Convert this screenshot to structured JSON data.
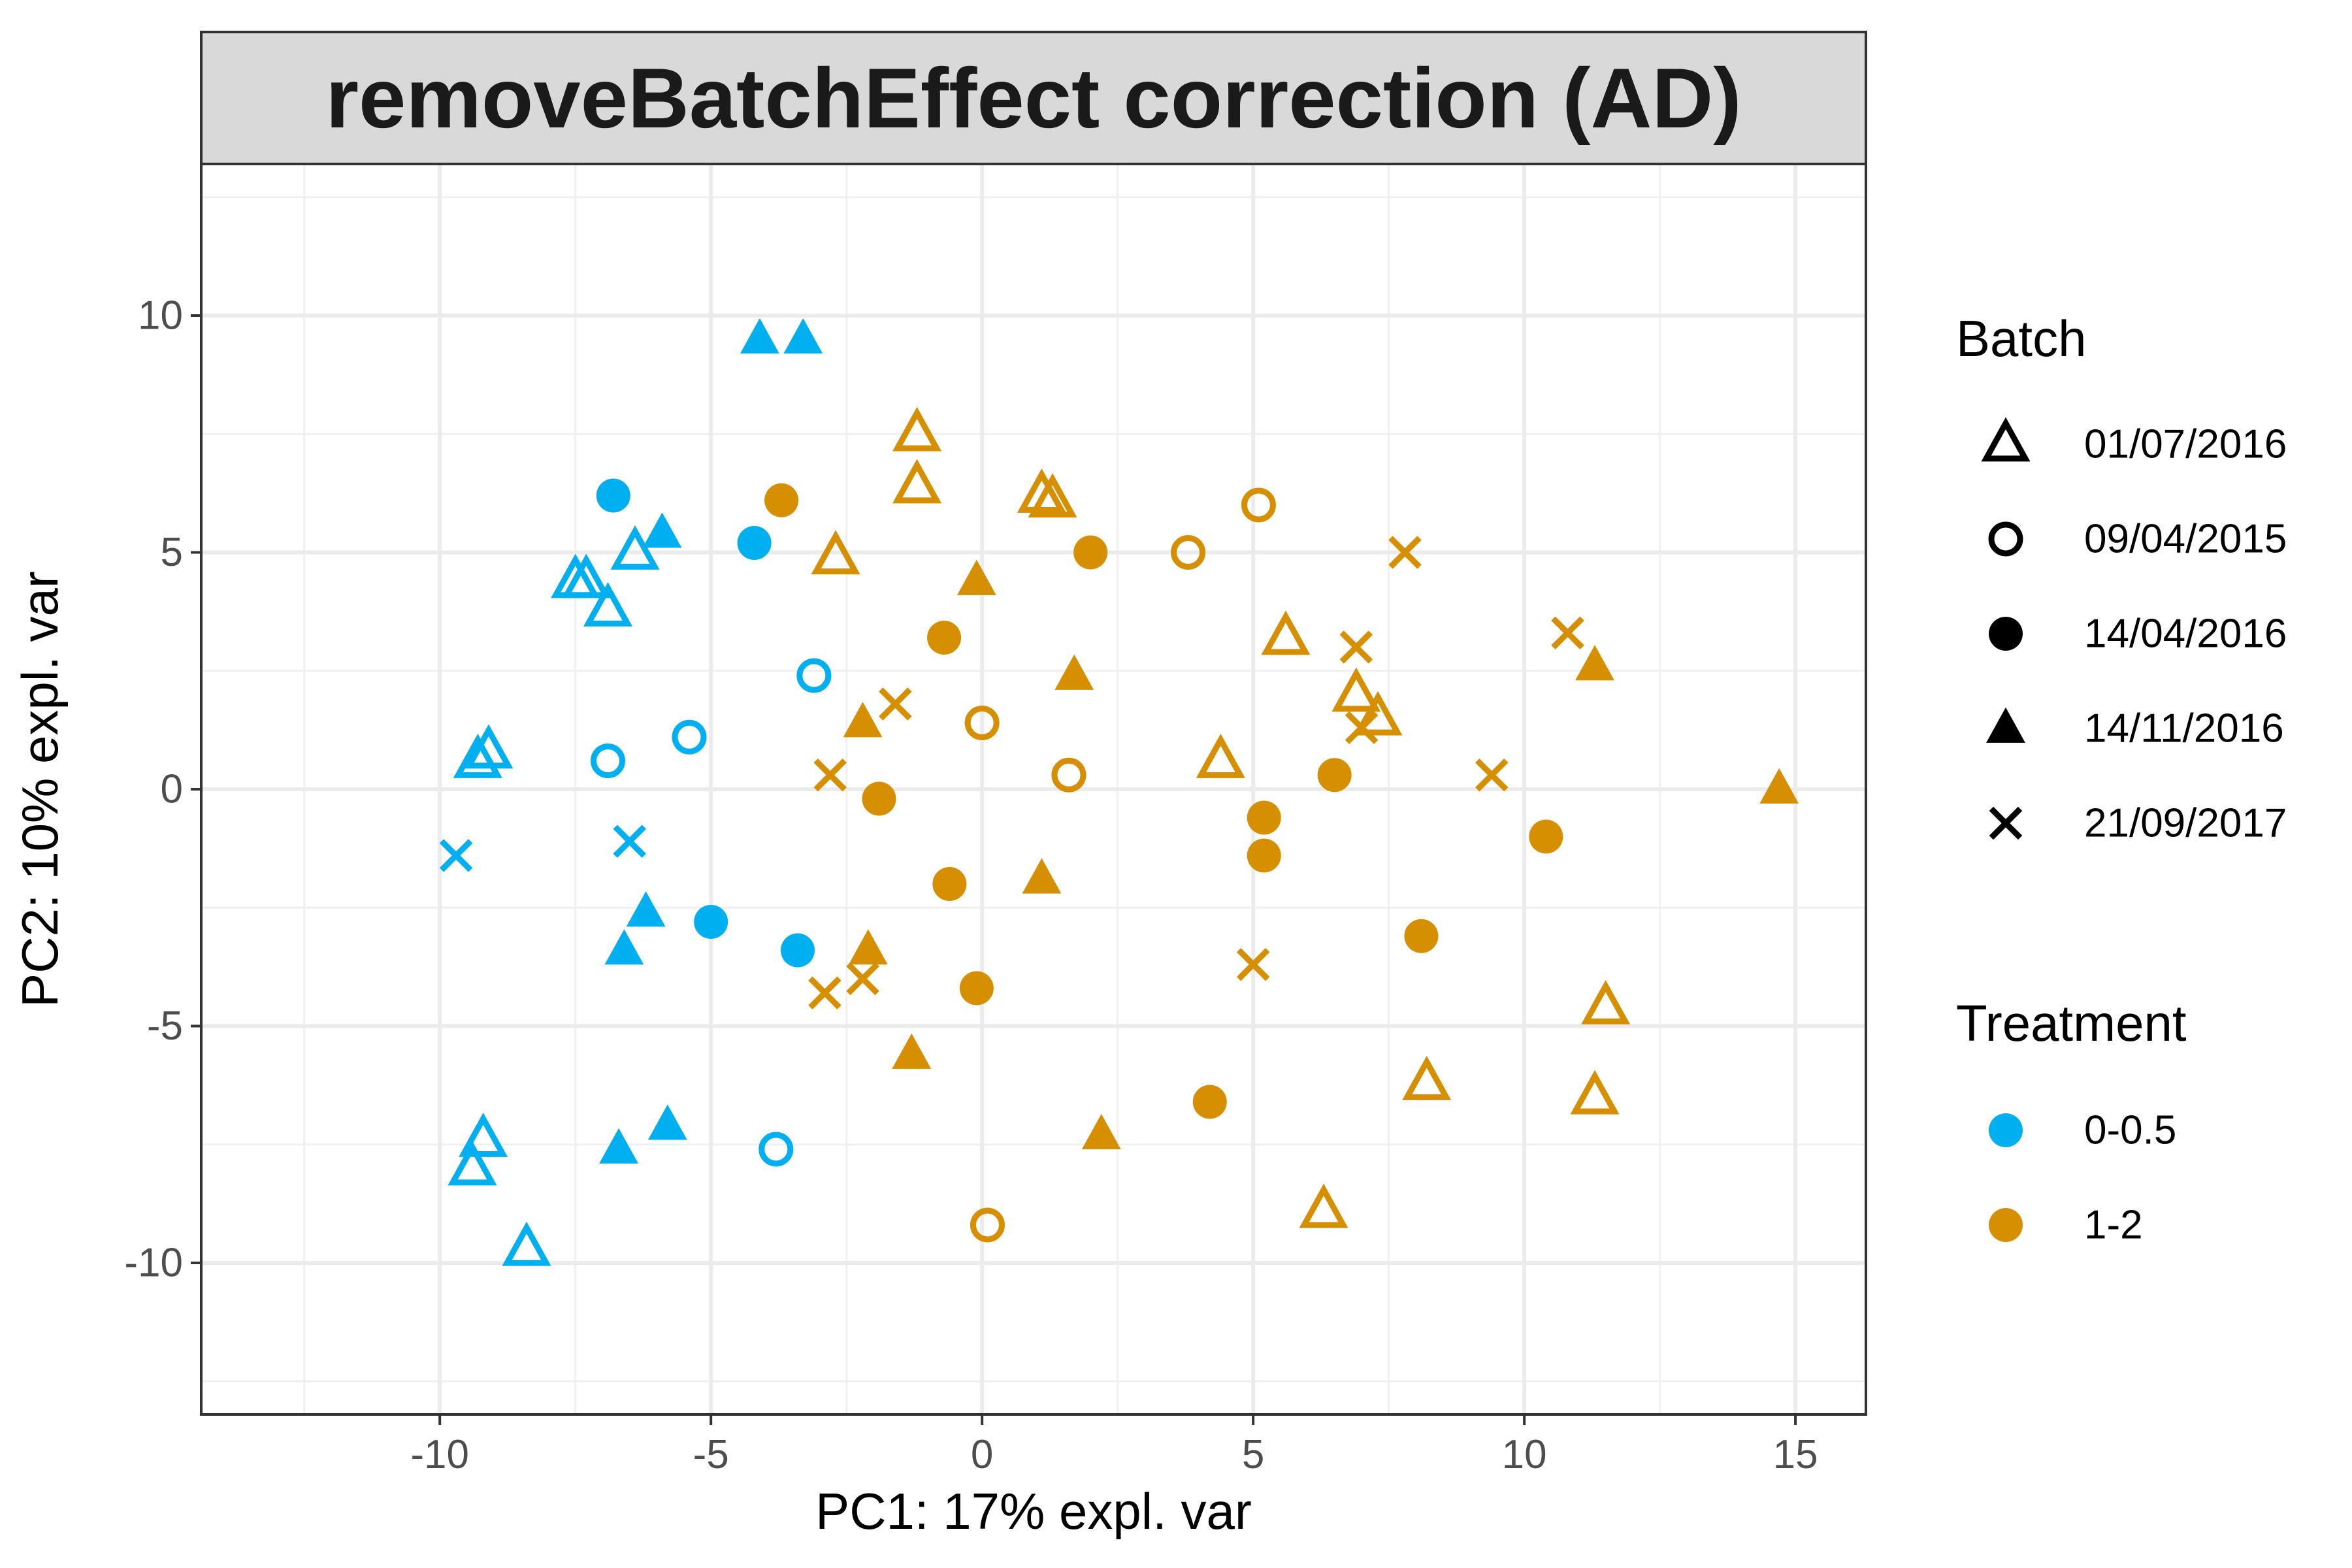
{
  "chart_data": {
    "type": "scatter",
    "title": "removeBatchEffect correction (AD)",
    "xlabel": "PC1: 17% expl. var",
    "ylabel": "PC2: 10% expl. var",
    "xlim": [
      -14.4,
      16.3
    ],
    "ylim": [
      -13.2,
      13.2
    ],
    "x_ticks": [
      -10,
      -5,
      0,
      5,
      10,
      15
    ],
    "y_ticks": [
      -10,
      -5,
      0,
      5,
      10
    ],
    "x_tick_labels": [
      "-10",
      "-5",
      "0",
      "5",
      "10",
      "15"
    ],
    "y_tick_labels": [
      "-10",
      "-5",
      "0",
      "5",
      "10"
    ],
    "grid": true,
    "legend_position": "right",
    "legends": {
      "batch": {
        "title": "Batch",
        "items": [
          {
            "label": "01/07/2016",
            "shape": "triangle-open"
          },
          {
            "label": "09/04/2015",
            "shape": "circle-open"
          },
          {
            "label": "14/04/2016",
            "shape": "circle-filled"
          },
          {
            "label": "14/11/2016",
            "shape": "triangle-filled"
          },
          {
            "label": "21/09/2017",
            "shape": "cross"
          }
        ]
      },
      "treatment": {
        "title": "Treatment",
        "items": [
          {
            "label": "0-0.5",
            "color": "#00AFF0"
          },
          {
            "label": "1-2",
            "color": "#D58F00"
          }
        ]
      }
    },
    "points": [
      {
        "x": -4.1,
        "y": 9.5,
        "batch": "14/11/2016",
        "treatment": "0-0.5"
      },
      {
        "x": -3.3,
        "y": 9.5,
        "batch": "14/11/2016",
        "treatment": "0-0.5"
      },
      {
        "x": -6.8,
        "y": 6.2,
        "batch": "14/04/2016",
        "treatment": "0-0.5"
      },
      {
        "x": -4.2,
        "y": 5.2,
        "batch": "14/04/2016",
        "treatment": "0-0.5"
      },
      {
        "x": -5.9,
        "y": 5.4,
        "batch": "14/11/2016",
        "treatment": "0-0.5"
      },
      {
        "x": -6.4,
        "y": 5.0,
        "batch": "01/07/2016",
        "treatment": "0-0.5"
      },
      {
        "x": -7.5,
        "y": 4.4,
        "batch": "01/07/2016",
        "treatment": "0-0.5"
      },
      {
        "x": -7.3,
        "y": 4.4,
        "batch": "01/07/2016",
        "treatment": "0-0.5"
      },
      {
        "x": -6.9,
        "y": 3.8,
        "batch": "01/07/2016",
        "treatment": "0-0.5"
      },
      {
        "x": -3.1,
        "y": 2.4,
        "batch": "09/04/2015",
        "treatment": "0-0.5"
      },
      {
        "x": -5.4,
        "y": 1.1,
        "batch": "09/04/2015",
        "treatment": "0-0.5"
      },
      {
        "x": -9.1,
        "y": 0.8,
        "batch": "01/07/2016",
        "treatment": "0-0.5"
      },
      {
        "x": -9.3,
        "y": 0.6,
        "batch": "01/07/2016",
        "treatment": "0-0.5"
      },
      {
        "x": -6.9,
        "y": 0.6,
        "batch": "09/04/2015",
        "treatment": "0-0.5"
      },
      {
        "x": -9.7,
        "y": -1.4,
        "batch": "21/09/2017",
        "treatment": "0-0.5"
      },
      {
        "x": -6.5,
        "y": -1.1,
        "batch": "21/09/2017",
        "treatment": "0-0.5"
      },
      {
        "x": -6.2,
        "y": -2.6,
        "batch": "14/11/2016",
        "treatment": "0-0.5"
      },
      {
        "x": -5.0,
        "y": -2.8,
        "batch": "14/04/2016",
        "treatment": "0-0.5"
      },
      {
        "x": -6.6,
        "y": -3.4,
        "batch": "14/11/2016",
        "treatment": "0-0.5"
      },
      {
        "x": -3.4,
        "y": -3.4,
        "batch": "14/04/2016",
        "treatment": "0-0.5"
      },
      {
        "x": -9.2,
        "y": -7.4,
        "batch": "01/07/2016",
        "treatment": "0-0.5"
      },
      {
        "x": -9.4,
        "y": -8.0,
        "batch": "01/07/2016",
        "treatment": "0-0.5"
      },
      {
        "x": -6.7,
        "y": -7.6,
        "batch": "14/11/2016",
        "treatment": "0-0.5"
      },
      {
        "x": -5.8,
        "y": -7.1,
        "batch": "14/11/2016",
        "treatment": "0-0.5"
      },
      {
        "x": -3.8,
        "y": -7.6,
        "batch": "09/04/2015",
        "treatment": "0-0.5"
      },
      {
        "x": -8.4,
        "y": -9.7,
        "batch": "01/07/2016",
        "treatment": "0-0.5"
      },
      {
        "x": -1.2,
        "y": 7.5,
        "batch": "01/07/2016",
        "treatment": "1-2"
      },
      {
        "x": -1.2,
        "y": 6.4,
        "batch": "01/07/2016",
        "treatment": "1-2"
      },
      {
        "x": -3.7,
        "y": 6.1,
        "batch": "14/04/2016",
        "treatment": "1-2"
      },
      {
        "x": 1.1,
        "y": 6.2,
        "batch": "01/07/2016",
        "treatment": "1-2"
      },
      {
        "x": 1.3,
        "y": 6.1,
        "batch": "01/07/2016",
        "treatment": "1-2"
      },
      {
        "x": 5.1,
        "y": 6.0,
        "batch": "09/04/2015",
        "treatment": "1-2"
      },
      {
        "x": -2.7,
        "y": 4.9,
        "batch": "01/07/2016",
        "treatment": "1-2"
      },
      {
        "x": 2.0,
        "y": 5.0,
        "batch": "14/04/2016",
        "treatment": "1-2"
      },
      {
        "x": 3.8,
        "y": 5.0,
        "batch": "09/04/2015",
        "treatment": "1-2"
      },
      {
        "x": 7.8,
        "y": 5.0,
        "batch": "21/09/2017",
        "treatment": "1-2"
      },
      {
        "x": -0.1,
        "y": 4.4,
        "batch": "14/11/2016",
        "treatment": "1-2"
      },
      {
        "x": -0.7,
        "y": 3.2,
        "batch": "14/04/2016",
        "treatment": "1-2"
      },
      {
        "x": 5.6,
        "y": 3.2,
        "batch": "01/07/2016",
        "treatment": "1-2"
      },
      {
        "x": 6.9,
        "y": 3.0,
        "batch": "21/09/2017",
        "treatment": "1-2"
      },
      {
        "x": 10.8,
        "y": 3.3,
        "batch": "21/09/2017",
        "treatment": "1-2"
      },
      {
        "x": 11.3,
        "y": 2.6,
        "batch": "14/11/2016",
        "treatment": "1-2"
      },
      {
        "x": 1.7,
        "y": 2.4,
        "batch": "14/11/2016",
        "treatment": "1-2"
      },
      {
        "x": 6.9,
        "y": 2.0,
        "batch": "01/07/2016",
        "treatment": "1-2"
      },
      {
        "x": -1.6,
        "y": 1.8,
        "batch": "21/09/2017",
        "treatment": "1-2"
      },
      {
        "x": -2.2,
        "y": 1.4,
        "batch": "14/11/2016",
        "treatment": "1-2"
      },
      {
        "x": 0.0,
        "y": 1.4,
        "batch": "09/04/2015",
        "treatment": "1-2"
      },
      {
        "x": 7.3,
        "y": 1.5,
        "batch": "01/07/2016",
        "treatment": "1-2"
      },
      {
        "x": 7.0,
        "y": 1.3,
        "batch": "21/09/2017",
        "treatment": "1-2"
      },
      {
        "x": 4.4,
        "y": 0.6,
        "batch": "01/07/2016",
        "treatment": "1-2"
      },
      {
        "x": -2.8,
        "y": 0.3,
        "batch": "21/09/2017",
        "treatment": "1-2"
      },
      {
        "x": 1.6,
        "y": 0.3,
        "batch": "09/04/2015",
        "treatment": "1-2"
      },
      {
        "x": 6.5,
        "y": 0.3,
        "batch": "14/04/2016",
        "treatment": "1-2"
      },
      {
        "x": 9.4,
        "y": 0.3,
        "batch": "21/09/2017",
        "treatment": "1-2"
      },
      {
        "x": 14.7,
        "y": 0.0,
        "batch": "14/11/2016",
        "treatment": "1-2"
      },
      {
        "x": -1.9,
        "y": -0.2,
        "batch": "14/04/2016",
        "treatment": "1-2"
      },
      {
        "x": 5.2,
        "y": -0.6,
        "batch": "14/04/2016",
        "treatment": "1-2"
      },
      {
        "x": 10.4,
        "y": -1.0,
        "batch": "14/04/2016",
        "treatment": "1-2"
      },
      {
        "x": 5.2,
        "y": -1.4,
        "batch": "14/04/2016",
        "treatment": "1-2"
      },
      {
        "x": -0.6,
        "y": -2.0,
        "batch": "14/04/2016",
        "treatment": "1-2"
      },
      {
        "x": 1.1,
        "y": -1.9,
        "batch": "14/11/2016",
        "treatment": "1-2"
      },
      {
        "x": 8.1,
        "y": -3.1,
        "batch": "14/04/2016",
        "treatment": "1-2"
      },
      {
        "x": 5.0,
        "y": -3.7,
        "batch": "21/09/2017",
        "treatment": "1-2"
      },
      {
        "x": -2.1,
        "y": -3.4,
        "batch": "14/11/2016",
        "treatment": "1-2"
      },
      {
        "x": -2.2,
        "y": -4.0,
        "batch": "21/09/2017",
        "treatment": "1-2"
      },
      {
        "x": -2.9,
        "y": -4.3,
        "batch": "21/09/2017",
        "treatment": "1-2"
      },
      {
        "x": -0.1,
        "y": -4.2,
        "batch": "14/04/2016",
        "treatment": "1-2"
      },
      {
        "x": 11.5,
        "y": -4.6,
        "batch": "01/07/2016",
        "treatment": "1-2"
      },
      {
        "x": -1.3,
        "y": -5.6,
        "batch": "14/11/2016",
        "treatment": "1-2"
      },
      {
        "x": 8.2,
        "y": -6.2,
        "batch": "01/07/2016",
        "treatment": "1-2"
      },
      {
        "x": 11.3,
        "y": -6.5,
        "batch": "01/07/2016",
        "treatment": "1-2"
      },
      {
        "x": 4.2,
        "y": -6.6,
        "batch": "14/04/2016",
        "treatment": "1-2"
      },
      {
        "x": 2.2,
        "y": -7.3,
        "batch": "14/11/2016",
        "treatment": "1-2"
      },
      {
        "x": 6.3,
        "y": -8.9,
        "batch": "01/07/2016",
        "treatment": "1-2"
      },
      {
        "x": 0.1,
        "y": -9.2,
        "batch": "09/04/2015",
        "treatment": "1-2"
      }
    ]
  }
}
